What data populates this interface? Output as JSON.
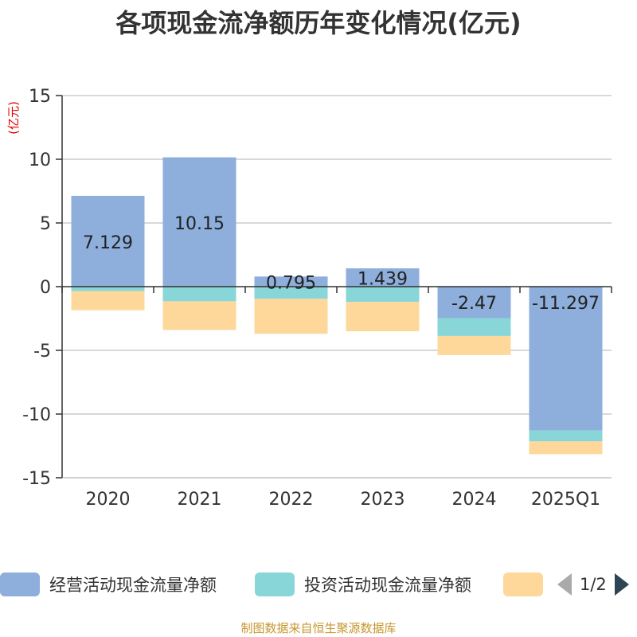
{
  "chart_data": {
    "type": "bar",
    "stacked": true,
    "title": "各项现金流净额历年变化情况(亿元)",
    "unit_label": "(亿元)",
    "categories": [
      "2020",
      "2021",
      "2022",
      "2023",
      "2024",
      "2025Q1"
    ],
    "ylim": [
      -15,
      15
    ],
    "yticks": [
      15,
      10,
      5,
      0,
      -5,
      -10,
      -15
    ],
    "grid": true,
    "series": [
      {
        "name": "经营活动现金流量净额",
        "color": "#8eaedb",
        "values": [
          7.129,
          10.15,
          0.795,
          1.439,
          -2.47,
          -11.297
        ],
        "show_labels": true
      },
      {
        "name": "投资活动现金流量净额",
        "color": "#88d6d8",
        "values": [
          -0.35,
          -1.15,
          -0.95,
          -1.2,
          -1.4,
          -0.85
        ],
        "show_labels": false
      },
      {
        "name": "",
        "color": "#fdd89a",
        "values": [
          -1.5,
          -2.25,
          -2.75,
          -2.3,
          -1.5,
          -1.0
        ],
        "show_labels": false
      }
    ]
  },
  "legend": {
    "page_text": "1/2"
  },
  "source_note": "制图数据来自恒生聚源数据库"
}
